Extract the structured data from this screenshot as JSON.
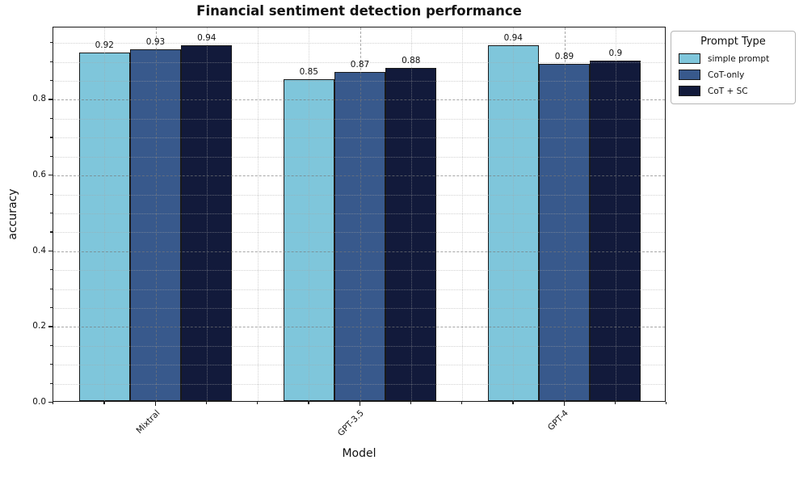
{
  "chart_data": {
    "type": "bar",
    "title": "Financial sentiment detection performance",
    "xlabel": "Model",
    "ylabel": "accuracy",
    "categories": [
      "Mixtral",
      "GPT-3.5",
      "GPT-4"
    ],
    "series": [
      {
        "name": "simple prompt",
        "color": "#7FC6DB",
        "values": [
          0.92,
          0.85,
          0.94
        ],
        "labels": [
          "0.92",
          "0.85",
          "0.94"
        ]
      },
      {
        "name": "CoT-only",
        "color": "#38598C",
        "values": [
          0.93,
          0.87,
          0.89
        ],
        "labels": [
          "0.93",
          "0.87",
          "0.89"
        ]
      },
      {
        "name": "CoT + SC",
        "color": "#121A3B",
        "values": [
          0.94,
          0.88,
          0.9
        ],
        "labels": [
          "0.94",
          "0.88",
          "0.9"
        ]
      }
    ],
    "ylim": [
      0,
      0.991
    ],
    "yticks": [
      {
        "value": 0.0,
        "label": "0.0"
      },
      {
        "value": 0.2,
        "label": "0.2"
      },
      {
        "value": 0.4,
        "label": "0.4"
      },
      {
        "value": 0.6,
        "label": "0.6"
      },
      {
        "value": 0.8,
        "label": "0.8"
      }
    ],
    "grid": {
      "major_style": "dashed",
      "minor_style": "dotted",
      "y_minor_step": 0.05,
      "x_minor_step": 0.25,
      "drawn_above_bars": true
    },
    "bar_edge_color": "#1a1a1a",
    "bar_width_units": 0.25,
    "legend": {
      "title": "Prompt Type",
      "position": "outside-upper-right",
      "border_color": "#b5b5b5"
    }
  }
}
